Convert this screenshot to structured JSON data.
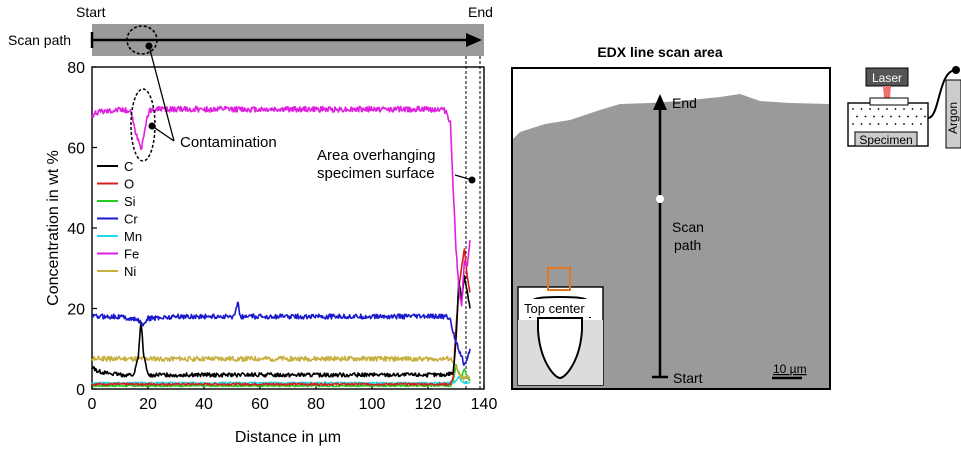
{
  "top_strip": {
    "start_label": "Start",
    "end_label": "End",
    "scan_path_label": "Scan path"
  },
  "annotations": {
    "contamination": "Contamination",
    "overhang_line1": "Area overhanging",
    "overhang_line2": "specimen surface"
  },
  "sem_panel": {
    "title": "EDX line scan area",
    "end_label": "End",
    "start_label": "Start",
    "scan_label_line1": "Scan",
    "scan_label_line2": "path",
    "scale_bar": "10 µm",
    "inset_label": "Top center"
  },
  "setup_schematic": {
    "laser_label": "Laser",
    "specimen_label": "Specimen",
    "argon_label": "Argon"
  },
  "colors": {
    "C": "#000000",
    "O": "#d42020",
    "Si": "#22cc22",
    "Cr": "#1a1acc",
    "Mn": "#22d8e8",
    "Fe": "#e020e0",
    "Ni": "#c8b040",
    "sem_gray": "#9a9a9a",
    "inset_orange": "#e07820"
  },
  "chart_data": {
    "type": "line",
    "title": "",
    "xlabel": "Distance in µm",
    "ylabel": "Concentration in wt %",
    "xlim": [
      0,
      140
    ],
    "ylim": [
      0,
      80
    ],
    "xticks": [
      0,
      20,
      40,
      60,
      80,
      100,
      120,
      140
    ],
    "yticks": [
      0,
      20,
      40,
      60,
      80
    ],
    "legend_position": "middle-left",
    "grid": false,
    "series": [
      {
        "name": "C",
        "x": [
          0,
          2,
          5,
          10,
          15,
          16.5,
          17.5,
          18.5,
          20,
          30,
          50,
          70,
          90,
          110,
          125,
          129,
          130,
          131,
          132,
          133,
          134,
          135
        ],
        "y": [
          5.5,
          4.5,
          4,
          3.5,
          3.5,
          8,
          17,
          8,
          3.5,
          3.5,
          3.5,
          3.5,
          3.5,
          3.5,
          3.5,
          4,
          12,
          27,
          22,
          28,
          24,
          20
        ]
      },
      {
        "name": "O",
        "x": [
          0,
          20,
          60,
          100,
          128,
          129,
          130,
          131,
          132,
          133,
          134,
          135
        ],
        "y": [
          1.2,
          1.2,
          1.2,
          1.2,
          1.2,
          3,
          15,
          25,
          30,
          35,
          28,
          24
        ]
      },
      {
        "name": "Si",
        "x": [
          0,
          20,
          60,
          100,
          128,
          129,
          130,
          131,
          132,
          133,
          134,
          135
        ],
        "y": [
          0.8,
          0.8,
          0.8,
          0.8,
          0.8,
          2,
          6,
          4,
          3,
          5,
          3,
          2
        ]
      },
      {
        "name": "Cr",
        "x": [
          0,
          10,
          17,
          18,
          19,
          20,
          30,
          51,
          52,
          53,
          70,
          90,
          110,
          127,
          128,
          129,
          130,
          131,
          132,
          133,
          134,
          135
        ],
        "y": [
          18,
          18,
          17,
          15.5,
          17,
          17.5,
          18,
          18,
          22,
          18,
          18,
          18,
          18,
          18,
          17,
          14,
          12,
          10,
          8,
          6,
          7,
          10
        ]
      },
      {
        "name": "Mn",
        "x": [
          0,
          20,
          60,
          100,
          129,
          130,
          131,
          132,
          133,
          134,
          135
        ],
        "y": [
          1.5,
          1.5,
          1.5,
          1.5,
          1.5,
          2,
          3,
          2,
          1.5,
          1.5,
          1.5
        ]
      },
      {
        "name": "Fe",
        "x": [
          0,
          3,
          10,
          14,
          15.5,
          16.5,
          17.5,
          18.5,
          19.5,
          20.5,
          22,
          30,
          50,
          70,
          90,
          110,
          125,
          126.5,
          128,
          129,
          130,
          131,
          132,
          133,
          134,
          135
        ],
        "y": [
          68,
          69,
          69.5,
          69,
          64,
          62,
          59,
          63,
          67,
          69,
          69.5,
          69.5,
          69.5,
          69.5,
          69.5,
          69.5,
          69.5,
          69,
          66,
          50,
          35,
          25,
          20,
          32,
          30,
          37
        ]
      },
      {
        "name": "Ni",
        "x": [
          0,
          10,
          30,
          50,
          70,
          90,
          110,
          128,
          129,
          130,
          131,
          132,
          133,
          134,
          135
        ],
        "y": [
          7.5,
          7.5,
          7.5,
          7.5,
          7.5,
          7.5,
          7.5,
          7.5,
          7,
          5,
          4,
          3,
          2.5,
          3,
          2.5
        ]
      }
    ]
  }
}
